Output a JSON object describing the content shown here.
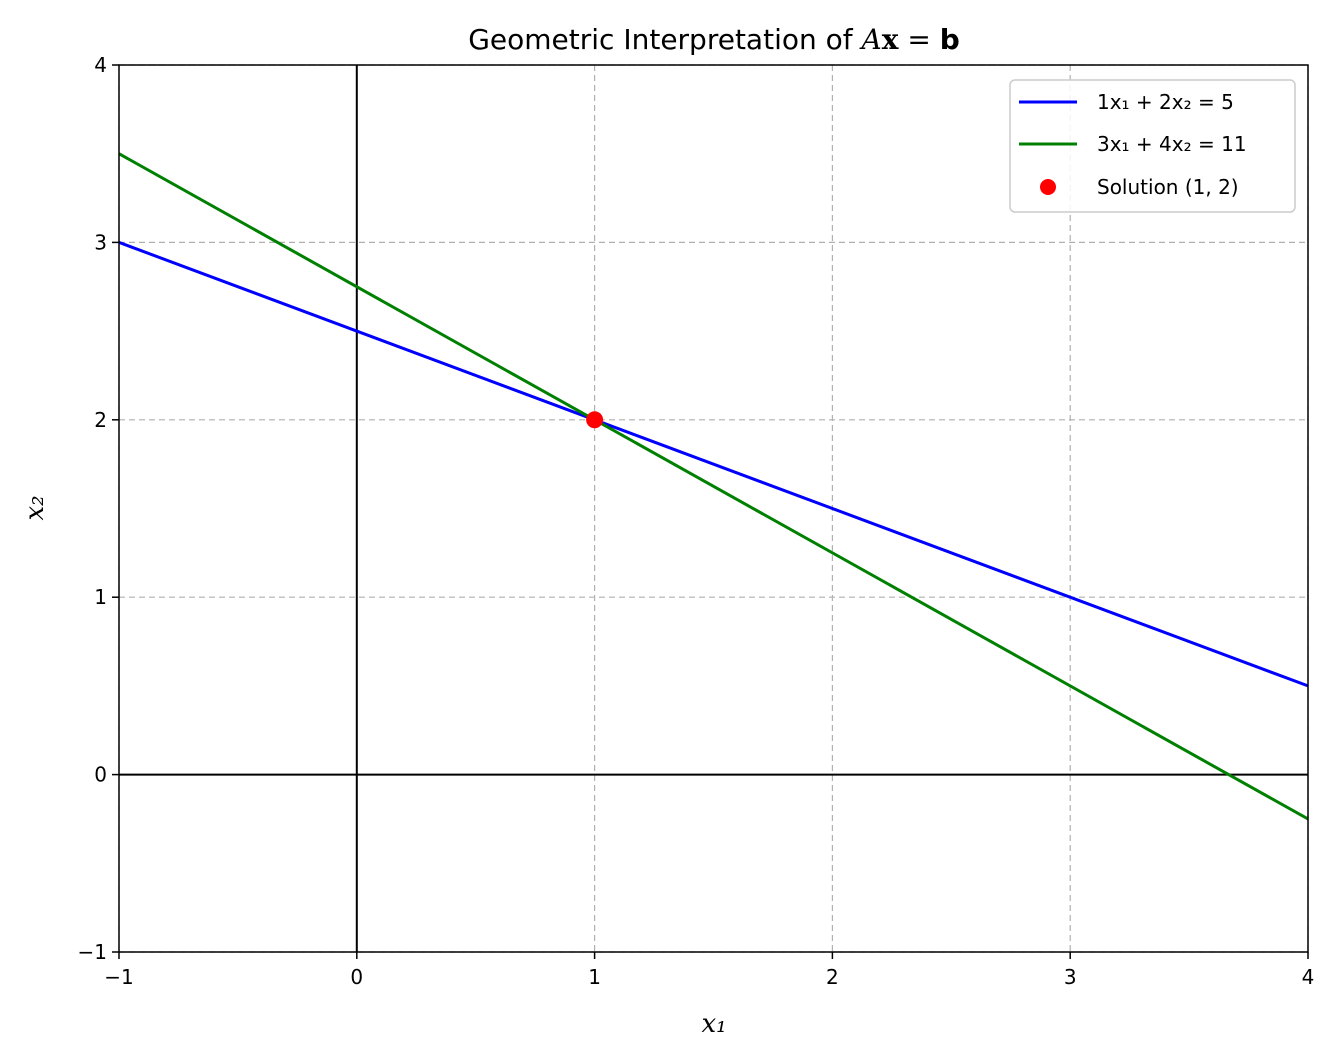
{
  "chart_data": {
    "type": "line",
    "title": "Geometric Interpretation of Ax = b",
    "title_parts": {
      "prefix": "Geometric Interpretation of ",
      "A": "A",
      "x": "x",
      "eq": " = ",
      "b": "b"
    },
    "xlabel": "x₁",
    "ylabel": "x₂",
    "xlim": [
      -1,
      4
    ],
    "ylim": [
      -1,
      4
    ],
    "xticks": [
      "−1",
      "0",
      "1",
      "2",
      "3",
      "4"
    ],
    "yticks": [
      "−1",
      "0",
      "1",
      "2",
      "3",
      "4"
    ],
    "grid": true,
    "legend_position": "top-right",
    "series": [
      {
        "name": "1x₁ + 2x₂ = 5",
        "color": "#0000ff",
        "x": [
          -1,
          4
        ],
        "y": [
          3,
          0.5
        ]
      },
      {
        "name": "3x₁ + 4x₂ = 11",
        "color": "#008000",
        "x": [
          -1,
          4
        ],
        "y": [
          3.5,
          -0.25
        ]
      }
    ],
    "points": [
      {
        "name": "Solution (1, 2)",
        "color": "#ff0000",
        "x": 1,
        "y": 2
      }
    ],
    "reference_lines": {
      "x0": 0,
      "y0": 0,
      "color": "#000000"
    }
  }
}
